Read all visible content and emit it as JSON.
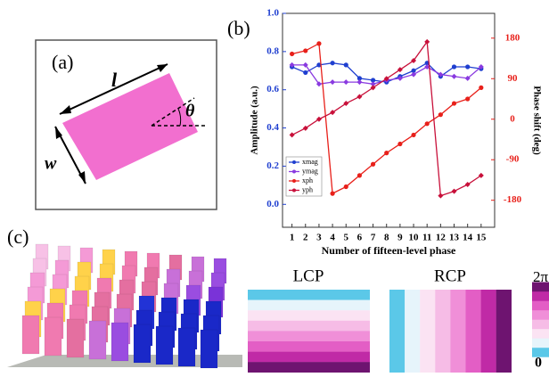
{
  "panel_a": {
    "label": "(a)",
    "length": "l",
    "width": "w",
    "angle": "θ"
  },
  "chart_data": {
    "type": "line",
    "panel_label": "(b)",
    "x_label": "Number of fifteen-level phase",
    "y_label": "Amplitude (a.u.)",
    "y2_label": "Phase shift (deg)",
    "x": [
      1,
      2,
      3,
      4,
      5,
      6,
      7,
      8,
      9,
      10,
      11,
      12,
      13,
      14,
      15
    ],
    "xlim": [
      0.3,
      16
    ],
    "xticks": [
      1,
      2,
      3,
      4,
      5,
      6,
      7,
      8,
      9,
      10,
      11,
      12,
      13,
      14,
      15
    ],
    "ylim": [
      -0.12,
      1.0
    ],
    "yticks": [
      {
        "value": 0,
        "label": "0.0"
      },
      0.2,
      0.4,
      0.6,
      0.8,
      {
        "value": 1,
        "label": "1.0"
      }
    ],
    "y2lim": [
      -240,
      235
    ],
    "y2ticks": [
      180,
      90,
      0,
      -90,
      -180
    ],
    "legend": "lower left",
    "series": [
      {
        "name": "xmag",
        "color": "#1f3fd0",
        "values": [
          0.72,
          0.69,
          0.73,
          0.74,
          0.73,
          0.66,
          0.65,
          0.64,
          0.67,
          0.7,
          0.74,
          0.67,
          0.72,
          0.72,
          0.71
        ]
      },
      {
        "name": "ymag",
        "color": "#8a3ae0",
        "values": [
          0.73,
          0.73,
          0.63,
          0.64,
          0.64,
          0.64,
          0.63,
          0.65,
          0.66,
          0.68,
          0.72,
          0.68,
          0.67,
          0.66,
          0.72
        ]
      },
      {
        "name": "xph",
        "color": "#e8201a",
        "axis": "y2",
        "values": [
          145,
          152,
          168,
          -165,
          -150,
          -125,
          -100,
          -75,
          -55,
          -35,
          -10,
          10,
          35,
          45,
          70
        ]
      },
      {
        "name": "yph",
        "color": "#c8103a",
        "axis": "y2",
        "values": [
          -35,
          -20,
          0,
          15,
          35,
          50,
          70,
          90,
          110,
          130,
          172,
          -170,
          -160,
          -145,
          -125
        ]
      }
    ]
  },
  "panel_c": {
    "label": "(c)",
    "lcp": "LCP",
    "rcp": "RCP",
    "colorbar_top": "2π",
    "colorbar_bottom": "0"
  }
}
